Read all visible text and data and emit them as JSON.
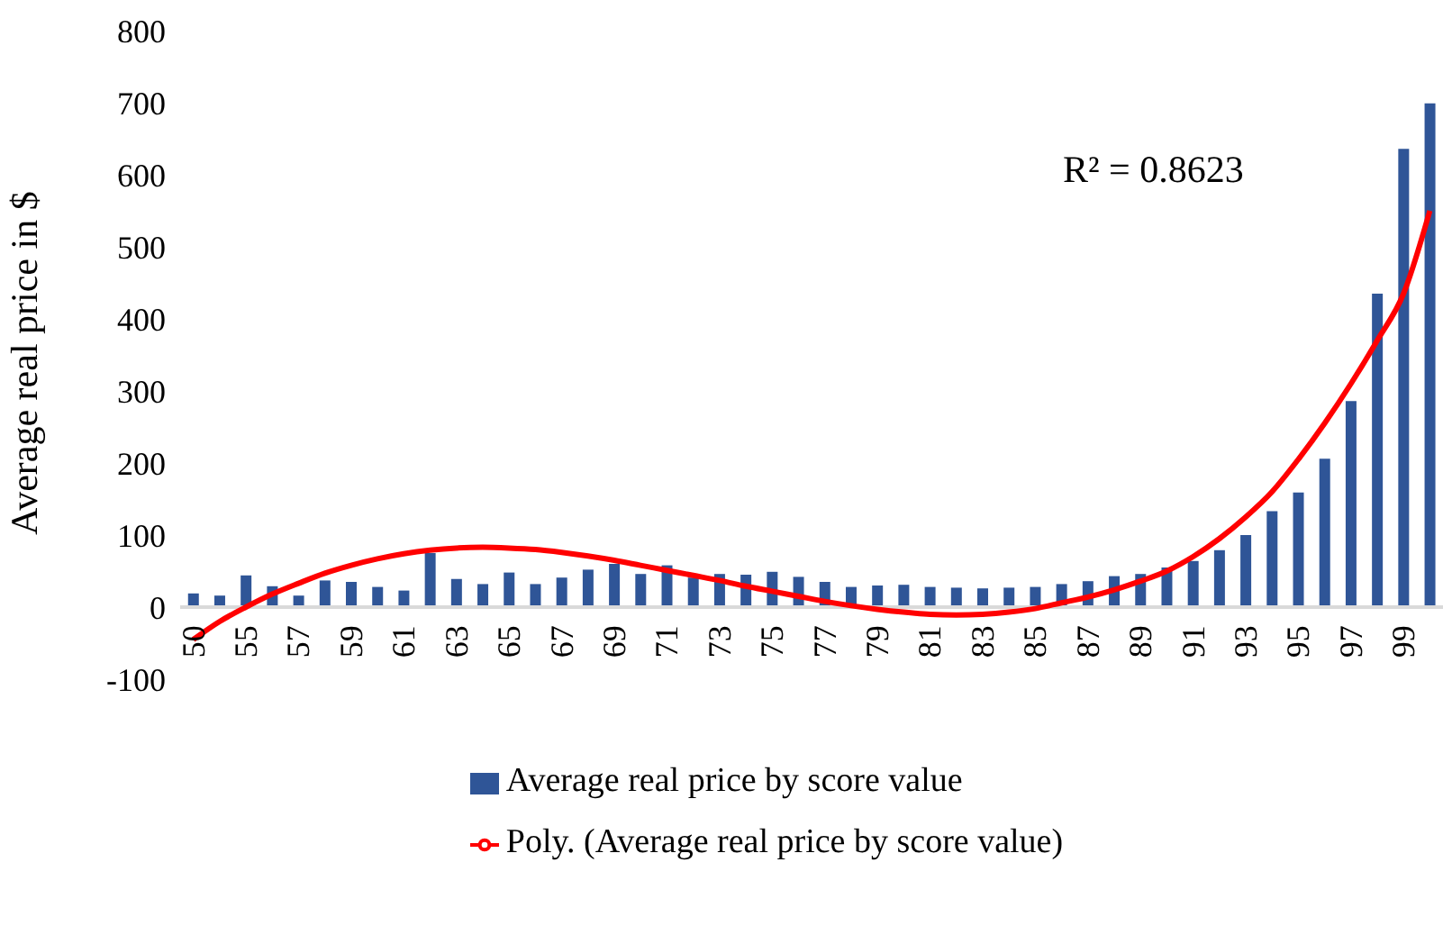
{
  "chart_data": {
    "type": "bar",
    "ylabel": "Average real price in $",
    "categories": [
      "50",
      null,
      "55",
      null,
      "57",
      null,
      "59",
      null,
      "61",
      null,
      "63",
      null,
      "65",
      null,
      "67",
      null,
      "69",
      null,
      "71",
      null,
      "73",
      null,
      "75",
      null,
      "77",
      null,
      "79",
      null,
      "81",
      null,
      "83",
      null,
      "85",
      null,
      "87",
      null,
      "89",
      null,
      "91",
      null,
      "93",
      null,
      "95",
      null,
      "97",
      null,
      "99",
      null
    ],
    "series": [
      {
        "name": "Average real price by score value",
        "color": "#2f5597",
        "values": [
          19,
          16,
          44,
          29,
          16,
          37,
          35,
          28,
          23,
          75,
          39,
          32,
          48,
          32,
          41,
          52,
          60,
          46,
          58,
          41,
          46,
          45,
          49,
          42,
          35,
          28,
          30,
          31,
          28,
          27,
          26,
          27,
          28,
          32,
          36,
          43,
          46,
          55,
          64,
          79,
          100,
          133,
          159,
          206,
          286,
          435,
          636,
          699
        ]
      },
      {
        "name": "Poly. (Average real price by score value)",
        "type": "line",
        "color": "#ff0000",
        "values": [
          -45,
          -20,
          0,
          18,
          33,
          47,
          58,
          67,
          74,
          79,
          82,
          83,
          82,
          80,
          76,
          71,
          65,
          58,
          51,
          44,
          37,
          29,
          22,
          15,
          8,
          2,
          -3,
          -7,
          -10,
          -11,
          -10,
          -7,
          -2,
          6,
          14,
          24,
          36,
          50,
          70,
          95,
          125,
          160,
          205,
          255,
          310,
          370,
          435,
          550
        ]
      }
    ],
    "ylim": [
      -100,
      800
    ],
    "yticks": [
      -100,
      0,
      100,
      200,
      300,
      400,
      500,
      600,
      700,
      800
    ],
    "annotations": [
      "R² = 0.8623"
    ],
    "legend": "bottom"
  }
}
